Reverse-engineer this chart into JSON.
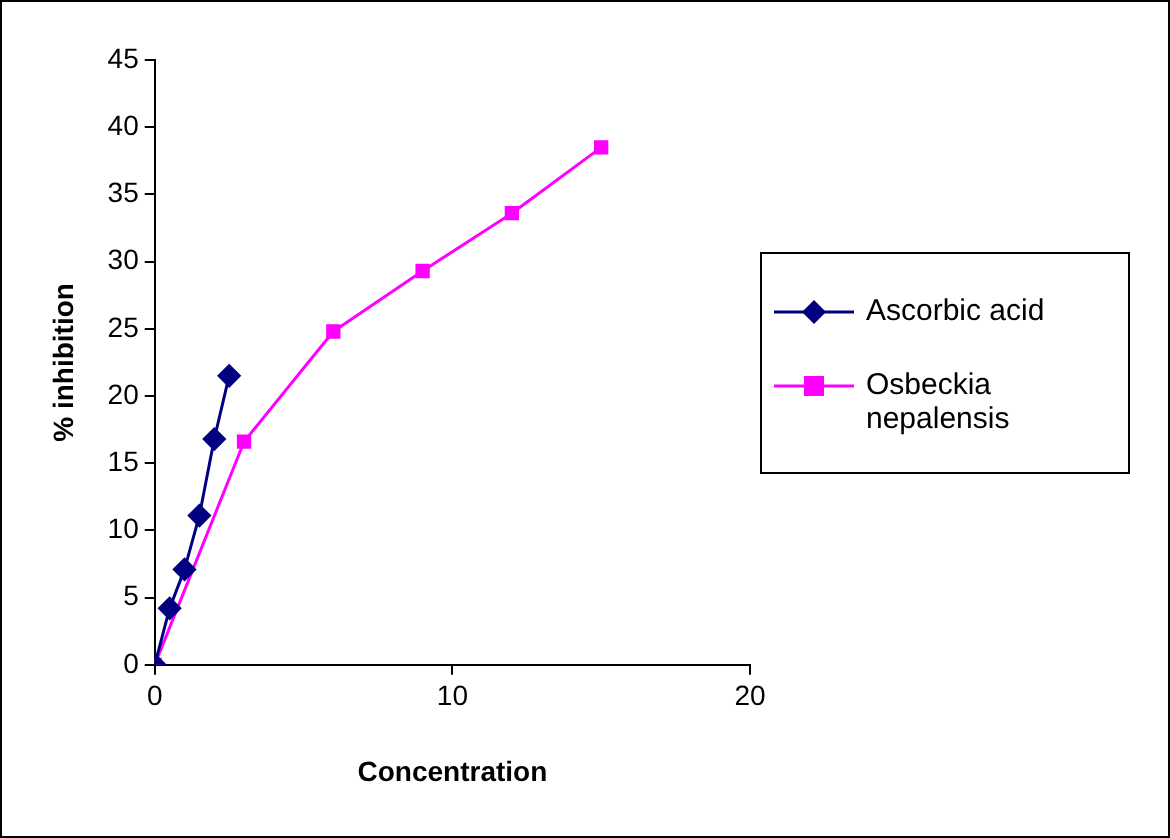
{
  "chart_data": {
    "type": "line",
    "xlabel": "Concentration",
    "ylabel": "% inhibition",
    "xlim": [
      0,
      20
    ],
    "xticks": [
      0,
      10,
      20
    ],
    "ylim": [
      0,
      45
    ],
    "yticks": [
      0,
      5,
      10,
      15,
      20,
      25,
      30,
      35,
      40,
      45
    ],
    "grid": false,
    "legend": "right",
    "line_style": "solid",
    "series": [
      {
        "name": "Ascorbic acid",
        "color": "#000080",
        "marker": "diamond",
        "x": [
          0,
          0.5,
          1,
          1.5,
          2,
          2.5
        ],
        "values": [
          0,
          4.2,
          7.1,
          11.1,
          16.8,
          21.5
        ]
      },
      {
        "name": "Osbeckia nepalensis",
        "color": "#ff00ff",
        "marker": "square",
        "x": [
          0,
          3,
          6,
          9,
          12,
          15
        ],
        "values": [
          0,
          16.6,
          24.8,
          29.3,
          33.6,
          38.5
        ]
      }
    ]
  }
}
